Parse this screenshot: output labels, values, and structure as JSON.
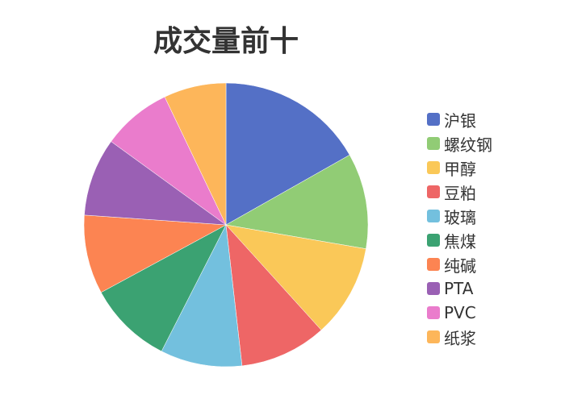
{
  "chart_data": {
    "type": "pie",
    "title": "成交量前十",
    "unit_note_values_are_percent_shares": true,
    "categories": [
      "沪银",
      "螺纹钢",
      "甲醇",
      "豆粕",
      "玻璃",
      "焦煤",
      "纯碱",
      "PTA",
      "PVC",
      "纸浆"
    ],
    "values": [
      16.8,
      10.9,
      10.6,
      9.9,
      9.3,
      9.6,
      9.0,
      8.9,
      7.9,
      7.1
    ],
    "colors": [
      "#5470c6",
      "#91cc75",
      "#fac858",
      "#ee6666",
      "#73c0de",
      "#3ba272",
      "#fc8452",
      "#9a60b4",
      "#ea7ccc",
      "#fdb65a"
    ],
    "legend_placement": "right"
  }
}
